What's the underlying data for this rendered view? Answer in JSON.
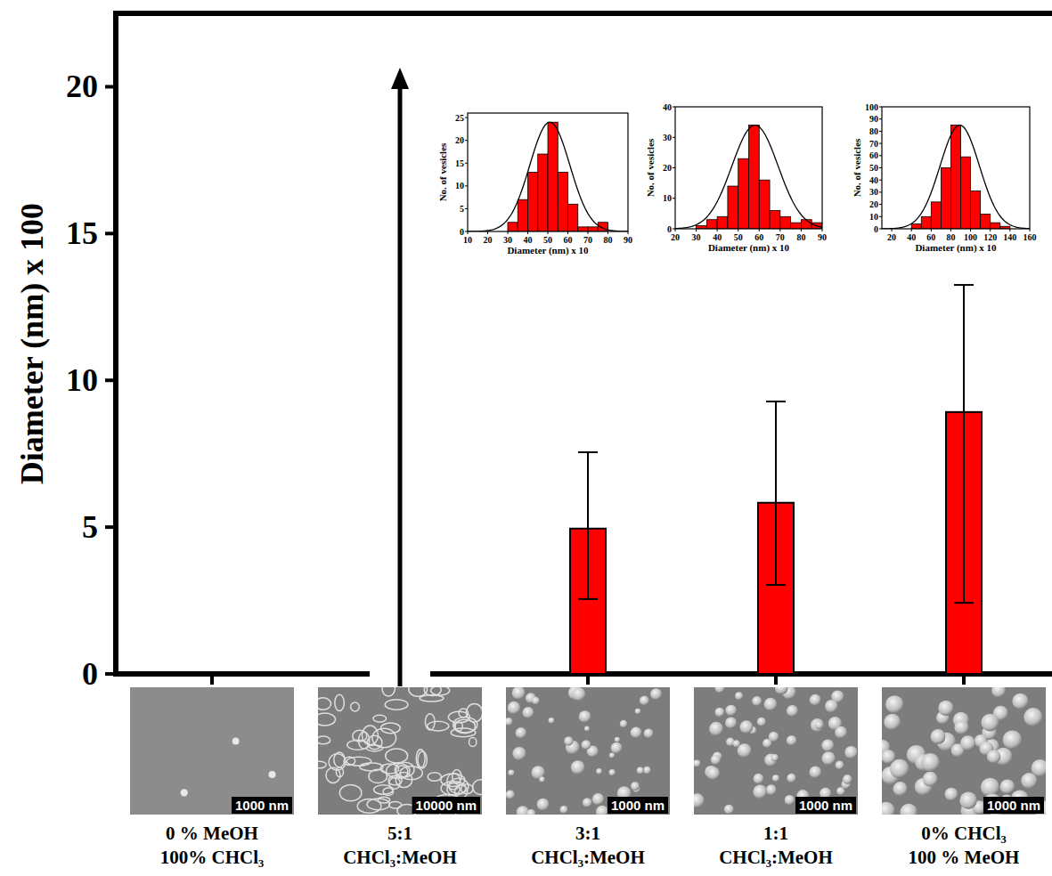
{
  "chart_data": [
    {
      "type": "bar",
      "y_label": "Diameter (nm) x 100",
      "categories": [
        "0 % MeOH\n100% CHCl₃",
        "5:1\nCHCl₃:MeOH",
        "3:1\nCHCl₃:MeOH",
        "1:1\nCHCl₃:MeOH",
        "0% CHCl₃\n100 % MeOH"
      ],
      "values": [
        null,
        null,
        4.95,
        5.83,
        8.92
      ],
      "error_minus": [
        null,
        null,
        2.4,
        2.8,
        6.5
      ],
      "error_plus": [
        null,
        null,
        2.6,
        3.45,
        4.33
      ],
      "color": "#ff0000",
      "ylim": [
        0,
        22.5
      ],
      "yticks": [
        0,
        5,
        10,
        15,
        20
      ],
      "annotations": [
        "1000 nm",
        "10000 nm",
        "1000 nm",
        "1000 nm",
        "1000 nm"
      ]
    },
    {
      "type": "histogram",
      "x_label": "Diameter (nm) x 10",
      "y_label": "No. of vesicles",
      "bins": [
        30,
        35,
        40,
        45,
        50,
        55,
        60,
        65,
        70,
        75,
        80
      ],
      "values": [
        2,
        7,
        13,
        17,
        24,
        13,
        6,
        1,
        1,
        2
      ],
      "color": "#ff0000",
      "xlim": [
        10,
        90
      ],
      "xticks": [
        10,
        20,
        30,
        40,
        50,
        60,
        70,
        80,
        90
      ],
      "ylim": [
        0,
        26
      ],
      "yticks": [
        0,
        5,
        10,
        15,
        20,
        25
      ],
      "fit_mean": 51,
      "fit_sd": 10,
      "fit_amplitude": 24
    },
    {
      "type": "histogram",
      "x_label": "Diameter (nm) x 10",
      "y_label": "No. of vesicles",
      "bins": [
        30,
        35,
        40,
        45,
        50,
        55,
        60,
        65,
        70,
        75,
        80,
        85,
        90
      ],
      "values": [
        1,
        3,
        4,
        14,
        23,
        34,
        16,
        6,
        4,
        2,
        3,
        2
      ],
      "color": "#ff0000",
      "xlim": [
        20,
        90
      ],
      "xticks": [
        20,
        30,
        40,
        50,
        60,
        70,
        80,
        90
      ],
      "ylim": [
        0,
        40
      ],
      "yticks": [
        0,
        10,
        20,
        30,
        40
      ],
      "fit_mean": 58,
      "fit_sd": 11,
      "fit_amplitude": 34
    },
    {
      "type": "histogram",
      "x_label": "Diameter (nm) x 10",
      "y_label": "No. of vesicles",
      "bins": [
        40,
        50,
        60,
        70,
        80,
        90,
        100,
        110,
        120,
        130,
        140
      ],
      "values": [
        4,
        10,
        22,
        50,
        85,
        59,
        31,
        12,
        5,
        2
      ],
      "color": "#ff0000",
      "xlim": [
        10,
        160
      ],
      "xticks": [
        20,
        40,
        60,
        80,
        100,
        120,
        140,
        160
      ],
      "ylim": [
        0,
        100
      ],
      "yticks": [
        0,
        10,
        20,
        30,
        40,
        50,
        60,
        70,
        80,
        90,
        100
      ],
      "fit_mean": 89,
      "fit_sd": 20,
      "fit_amplitude": 85
    }
  ]
}
